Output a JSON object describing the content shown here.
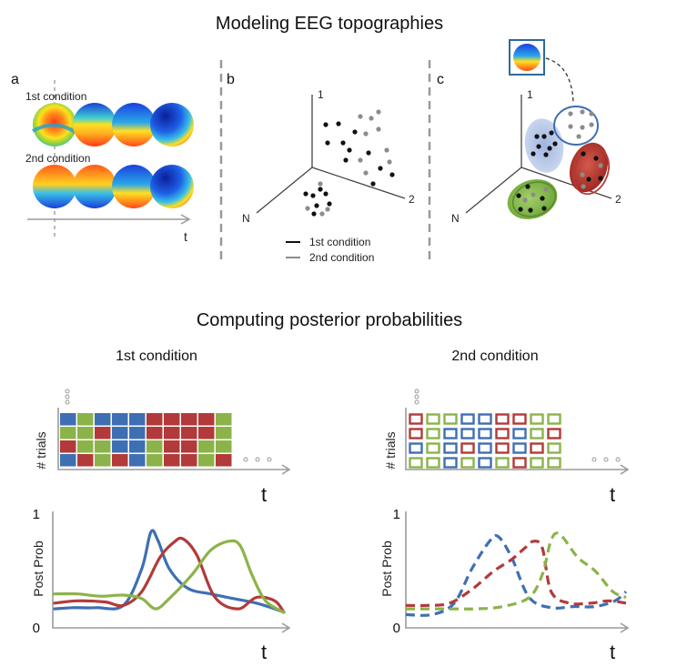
{
  "titles": {
    "top": "Modeling EEG topographies",
    "bottom": "Computing posterior probabilities"
  },
  "panel_a": {
    "label": "a",
    "row1_label": "1st condition",
    "row2_label": "2nd condition",
    "time_label": "t"
  },
  "panel_b": {
    "label": "b",
    "axis1": "1",
    "axis2": "2",
    "axisN": "N",
    "legend_cond1": "1st condition",
    "legend_cond2": "2nd condition"
  },
  "panel_c": {
    "label": "c",
    "axis1": "1",
    "axis2": "2",
    "axisN": "N"
  },
  "colors": {
    "blue": "#3f6fb3",
    "red": "#b23a3a",
    "green": "#8cb34a",
    "dot_black": "#111111",
    "dot_gray": "#8c8c8c"
  },
  "cond1": {
    "title": "1st condition",
    "ylabel": "# trials",
    "xlabel": "t",
    "grid": [
      [
        "blue",
        "green",
        "blue",
        "blue",
        "blue",
        "red",
        "red",
        "red",
        "red",
        "green"
      ],
      [
        "green",
        "green",
        "red",
        "blue",
        "blue",
        "red",
        "red",
        "red",
        "red",
        "green"
      ],
      [
        "red",
        "green",
        "green",
        "blue",
        "blue",
        "green",
        "red",
        "red",
        "green",
        "green"
      ],
      [
        "blue",
        "red",
        "green",
        "red",
        "blue",
        "green",
        "red",
        "red",
        "green",
        "red"
      ]
    ],
    "chart": {
      "type": "line",
      "ylabel": "Post Prob",
      "xlabel": "t",
      "ytick_top": "1",
      "ytick_bottom": "0",
      "ylim": [
        0,
        1
      ],
      "xlim": [
        0,
        100
      ],
      "series": [
        {
          "color": "blue",
          "x": [
            0,
            8,
            18,
            30,
            38,
            42,
            45,
            50,
            58,
            68,
            78,
            88,
            96,
            100
          ],
          "y": [
            0.15,
            0.16,
            0.16,
            0.18,
            0.5,
            0.82,
            0.75,
            0.5,
            0.33,
            0.28,
            0.24,
            0.2,
            0.15,
            0.12
          ]
        },
        {
          "color": "red",
          "x": [
            0,
            10,
            22,
            30,
            38,
            46,
            52,
            56,
            62,
            70,
            80,
            88,
            96,
            100
          ],
          "y": [
            0.2,
            0.22,
            0.21,
            0.18,
            0.3,
            0.6,
            0.73,
            0.76,
            0.62,
            0.25,
            0.15,
            0.25,
            0.22,
            0.12
          ]
        },
        {
          "color": "green",
          "x": [
            0,
            10,
            20,
            30,
            38,
            44,
            50,
            60,
            68,
            76,
            81,
            86,
            92,
            100
          ],
          "y": [
            0.28,
            0.28,
            0.26,
            0.27,
            0.24,
            0.15,
            0.24,
            0.45,
            0.66,
            0.74,
            0.7,
            0.45,
            0.22,
            0.12
          ]
        }
      ]
    }
  },
  "cond2": {
    "title": "2nd condition",
    "ylabel": "# trials",
    "xlabel": "t",
    "grid": [
      [
        "red",
        "green",
        "green",
        "blue",
        "blue",
        "red",
        "red",
        "green",
        "green"
      ],
      [
        "red",
        "green",
        "blue",
        "blue",
        "blue",
        "red",
        "blue",
        "green",
        "red"
      ],
      [
        "blue",
        "green",
        "blue",
        "red",
        "blue",
        "red",
        "blue",
        "red",
        "green"
      ],
      [
        "green",
        "green",
        "blue",
        "green",
        "blue",
        "green",
        "red",
        "green",
        "green"
      ]
    ],
    "chart": {
      "type": "line",
      "ylabel": "Post Prob",
      "xlabel": "t",
      "ytick_top": "1",
      "ytick_bottom": "0",
      "ylim": [
        0,
        1
      ],
      "xlim": [
        0,
        100
      ],
      "series": [
        {
          "color": "blue",
          "x": [
            0,
            12,
            22,
            30,
            38,
            42,
            48,
            56,
            66,
            76,
            86,
            95,
            100
          ],
          "y": [
            0.1,
            0.1,
            0.2,
            0.5,
            0.74,
            0.78,
            0.6,
            0.25,
            0.16,
            0.17,
            0.17,
            0.22,
            0.3
          ]
        },
        {
          "color": "red",
          "x": [
            0,
            10,
            20,
            30,
            40,
            48,
            54,
            58,
            62,
            66,
            74,
            84,
            92,
            100
          ],
          "y": [
            0.18,
            0.18,
            0.2,
            0.32,
            0.48,
            0.58,
            0.68,
            0.74,
            0.68,
            0.3,
            0.2,
            0.2,
            0.22,
            0.2
          ]
        },
        {
          "color": "green",
          "x": [
            0,
            10,
            22,
            32,
            44,
            56,
            62,
            66,
            70,
            78,
            86,
            94,
            100
          ],
          "y": [
            0.15,
            0.15,
            0.15,
            0.15,
            0.17,
            0.25,
            0.45,
            0.75,
            0.8,
            0.6,
            0.48,
            0.3,
            0.25
          ]
        }
      ]
    }
  }
}
